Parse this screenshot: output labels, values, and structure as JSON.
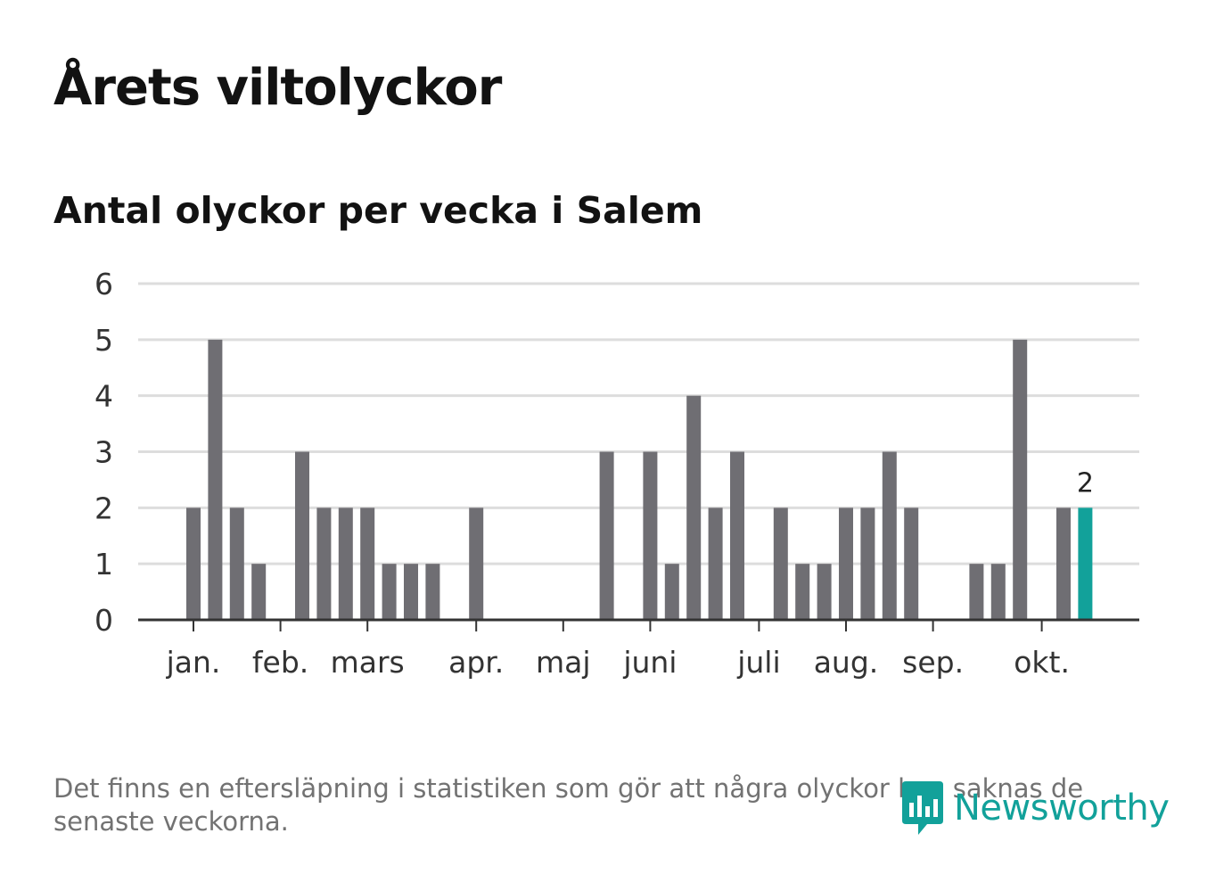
{
  "title": "Årets viltolyckor",
  "subtitle": "Antal olyckor per vecka i Salem",
  "footnote": "Det finns en eftersläpning i statistiken som gör att några olyckor kan saknas de senaste veckorna.",
  "brand": {
    "name": "Newsworthy",
    "icon": "newsworthy-logo-icon",
    "color": "#12a19a"
  },
  "colors": {
    "bar": "#6f6e73",
    "highlight": "#12a19a",
    "grid": "#dddddd",
    "axis": "#333333"
  },
  "chart_data": {
    "type": "bar",
    "title": "Årets viltolyckor",
    "subtitle": "Antal olyckor per vecka i Salem",
    "xlabel": "",
    "ylabel": "",
    "ylim": [
      0,
      6
    ],
    "yticks": [
      "0",
      "1",
      "2",
      "3",
      "4",
      "5",
      "6"
    ],
    "grid": true,
    "weeks": [
      1,
      2,
      3,
      4,
      5,
      6,
      7,
      8,
      9,
      10,
      11,
      12,
      13,
      14,
      15,
      16,
      17,
      18,
      19,
      20,
      21,
      22,
      23,
      24,
      25,
      26,
      27,
      28,
      29,
      30,
      31,
      32,
      33,
      34,
      35,
      36,
      37,
      38,
      39,
      40,
      41,
      42
    ],
    "values": [
      2,
      5,
      2,
      1,
      0,
      3,
      2,
      2,
      2,
      1,
      1,
      1,
      0,
      2,
      0,
      0,
      0,
      0,
      0,
      3,
      0,
      3,
      1,
      4,
      2,
      3,
      0,
      2,
      1,
      1,
      2,
      2,
      3,
      2,
      0,
      0,
      1,
      1,
      5,
      0,
      2,
      2
    ],
    "highlight_index": 41,
    "highlight_label": "2",
    "month_ticks": [
      {
        "label": "jan.",
        "week": 1
      },
      {
        "label": "feb.",
        "week": 5
      },
      {
        "label": "mars",
        "week": 9
      },
      {
        "label": "apr.",
        "week": 14
      },
      {
        "label": "maj",
        "week": 18
      },
      {
        "label": "juni",
        "week": 22
      },
      {
        "label": "juli",
        "week": 27
      },
      {
        "label": "aug.",
        "week": 31
      },
      {
        "label": "sep.",
        "week": 35
      },
      {
        "label": "okt.",
        "week": 40
      }
    ]
  }
}
